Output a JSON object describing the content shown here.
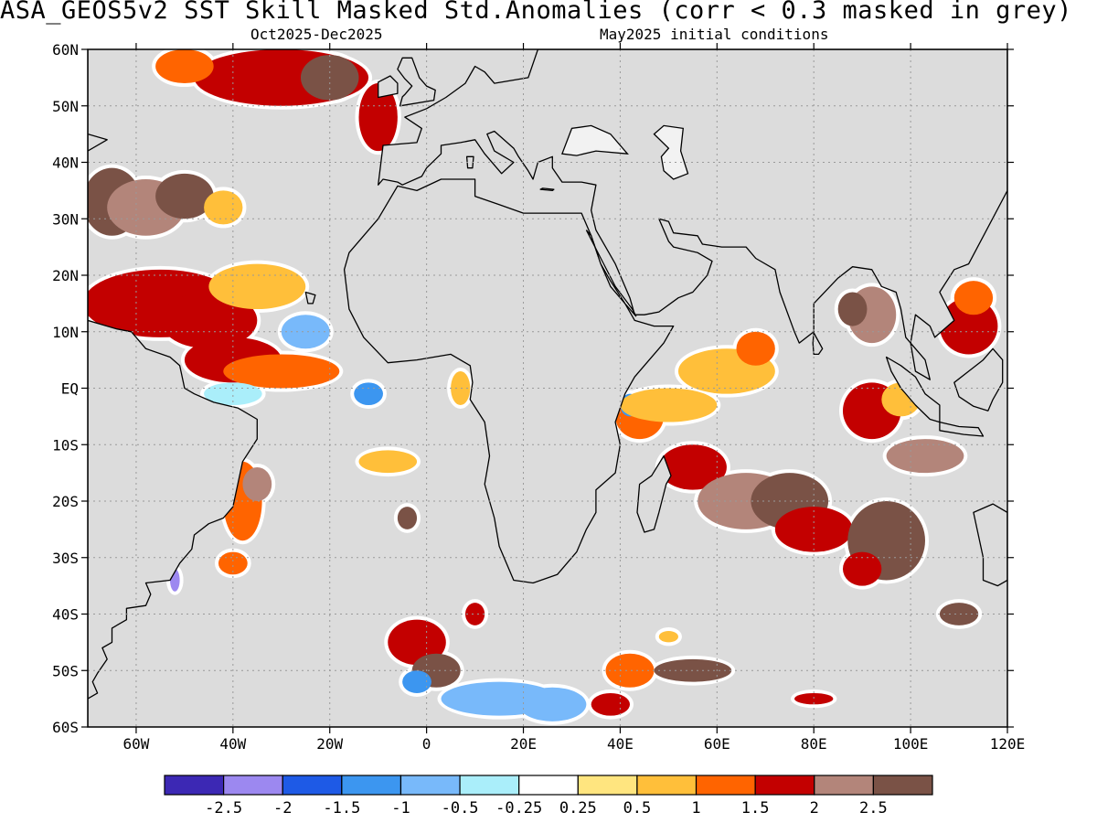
{
  "title": "ASA_GEOS5v2  SST Skill Masked Std.Anomalies (corr < 0.3 masked in grey)",
  "subtitle_left": "Oct2025-Dec2025",
  "subtitle_right": "May2025 initial conditions",
  "map": {
    "lon_range": [
      -70,
      120
    ],
    "lat_range": [
      -60,
      60
    ],
    "lat_ticks": [
      {
        "value": 60,
        "label": "60N"
      },
      {
        "value": 50,
        "label": "50N"
      },
      {
        "value": 40,
        "label": "40N"
      },
      {
        "value": 30,
        "label": "30N"
      },
      {
        "value": 20,
        "label": "20N"
      },
      {
        "value": 10,
        "label": "10N"
      },
      {
        "value": 0,
        "label": "EQ"
      },
      {
        "value": -10,
        "label": "10S"
      },
      {
        "value": -20,
        "label": "20S"
      },
      {
        "value": -30,
        "label": "30S"
      },
      {
        "value": -40,
        "label": "40S"
      },
      {
        "value": -50,
        "label": "50S"
      },
      {
        "value": -60,
        "label": "60S"
      }
    ],
    "lon_ticks": [
      {
        "value": -60,
        "label": "60W"
      },
      {
        "value": -40,
        "label": "40W"
      },
      {
        "value": -20,
        "label": "20W"
      },
      {
        "value": 0,
        "label": "0"
      },
      {
        "value": 20,
        "label": "20E"
      },
      {
        "value": 40,
        "label": "40E"
      },
      {
        "value": 60,
        "label": "60E"
      },
      {
        "value": 80,
        "label": "80E"
      },
      {
        "value": 100,
        "label": "100E"
      },
      {
        "value": 120,
        "label": "120E"
      }
    ],
    "land_color": "#dcdcdc",
    "mask_color": "#dcdcdc",
    "anomaly_regions": [
      {
        "lon": -65,
        "lat": 33,
        "rx": 6,
        "ry": 6,
        "value": 2.6
      },
      {
        "lon": -58,
        "lat": 32,
        "rx": 8,
        "ry": 5,
        "value": 2.1
      },
      {
        "lon": -50,
        "lat": 34,
        "rx": 6,
        "ry": 4,
        "value": 2.6
      },
      {
        "lon": -42,
        "lat": 32,
        "rx": 4,
        "ry": 3,
        "value": 0.8
      },
      {
        "lon": -30,
        "lat": 55,
        "rx": 18,
        "ry": 5,
        "value": 1.6
      },
      {
        "lon": -20,
        "lat": 55,
        "rx": 6,
        "ry": 4,
        "value": 2.6
      },
      {
        "lon": -50,
        "lat": 57,
        "rx": 6,
        "ry": 3,
        "value": 1.3
      },
      {
        "lon": -10,
        "lat": 48,
        "rx": 4,
        "ry": 6,
        "value": 1.6
      },
      {
        "lon": -55,
        "lat": 15,
        "rx": 16,
        "ry": 6,
        "value": 1.6
      },
      {
        "lon": -45,
        "lat": 12,
        "rx": 10,
        "ry": 5,
        "value": 1.9
      },
      {
        "lon": -35,
        "lat": 18,
        "rx": 10,
        "ry": 4,
        "value": 0.9
      },
      {
        "lon": -25,
        "lat": 10,
        "rx": 5,
        "ry": 3,
        "value": -0.9
      },
      {
        "lon": -40,
        "lat": 5,
        "rx": 10,
        "ry": 4,
        "value": 1.8
      },
      {
        "lon": -30,
        "lat": 3,
        "rx": 12,
        "ry": 3,
        "value": 1.2
      },
      {
        "lon": -40,
        "lat": -1,
        "rx": 6,
        "ry": 2,
        "value": -0.4
      },
      {
        "lon": -12,
        "lat": -1,
        "rx": 3,
        "ry": 2,
        "value": -1.2
      },
      {
        "lon": 7,
        "lat": 0,
        "rx": 2,
        "ry": 3,
        "value": 0.7
      },
      {
        "lon": -38,
        "lat": -20,
        "rx": 4,
        "ry": 7,
        "value": 1.4
      },
      {
        "lon": -35,
        "lat": -17,
        "rx": 3,
        "ry": 3,
        "value": 2.1
      },
      {
        "lon": -8,
        "lat": -13,
        "rx": 6,
        "ry": 2,
        "value": 0.6
      },
      {
        "lon": -4,
        "lat": -23,
        "rx": 2,
        "ry": 2,
        "value": 2.6
      },
      {
        "lon": -40,
        "lat": -31,
        "rx": 3,
        "ry": 2,
        "value": 1.4
      },
      {
        "lon": -52,
        "lat": -34,
        "rx": 1,
        "ry": 2,
        "value": -2.5
      },
      {
        "lon": -2,
        "lat": -45,
        "rx": 6,
        "ry": 4,
        "value": 1.8
      },
      {
        "lon": 2,
        "lat": -50,
        "rx": 5,
        "ry": 3,
        "value": 2.6
      },
      {
        "lon": -2,
        "lat": -52,
        "rx": 3,
        "ry": 2,
        "value": -1.1
      },
      {
        "lon": 15,
        "lat": -55,
        "rx": 12,
        "ry": 3,
        "value": -0.8
      },
      {
        "lon": 26,
        "lat": -56,
        "rx": 7,
        "ry": 3,
        "value": -1.0
      },
      {
        "lon": 38,
        "lat": -56,
        "rx": 4,
        "ry": 2,
        "value": 1.6
      },
      {
        "lon": 42,
        "lat": -50,
        "rx": 5,
        "ry": 3,
        "value": 1.3
      },
      {
        "lon": 55,
        "lat": -50,
        "rx": 8,
        "ry": 2,
        "value": 2.6
      },
      {
        "lon": 10,
        "lat": -40,
        "rx": 2,
        "ry": 2,
        "value": 1.7
      },
      {
        "lon": 44,
        "lat": -5,
        "rx": 5,
        "ry": 4,
        "value": 1.4
      },
      {
        "lon": 42,
        "lat": -3,
        "rx": 2,
        "ry": 2,
        "value": -1.2
      },
      {
        "lon": 50,
        "lat": -3,
        "rx": 10,
        "ry": 3,
        "value": 0.8
      },
      {
        "lon": 62,
        "lat": 3,
        "rx": 10,
        "ry": 4,
        "value": 0.6
      },
      {
        "lon": 68,
        "lat": 7,
        "rx": 4,
        "ry": 3,
        "value": 1.2
      },
      {
        "lon": 55,
        "lat": -14,
        "rx": 7,
        "ry": 4,
        "value": 1.8
      },
      {
        "lon": 66,
        "lat": -20,
        "rx": 10,
        "ry": 5,
        "value": 2.2
      },
      {
        "lon": 75,
        "lat": -20,
        "rx": 8,
        "ry": 5,
        "value": 2.6
      },
      {
        "lon": 80,
        "lat": -25,
        "rx": 8,
        "ry": 4,
        "value": 1.5
      },
      {
        "lon": 95,
        "lat": -27,
        "rx": 8,
        "ry": 7,
        "value": 2.6
      },
      {
        "lon": 90,
        "lat": -32,
        "rx": 4,
        "ry": 3,
        "value": 1.6
      },
      {
        "lon": 92,
        "lat": -4,
        "rx": 6,
        "ry": 5,
        "value": 1.7
      },
      {
        "lon": 98,
        "lat": -2,
        "rx": 4,
        "ry": 3,
        "value": 0.9
      },
      {
        "lon": 103,
        "lat": -12,
        "rx": 8,
        "ry": 3,
        "value": 2.1
      },
      {
        "lon": 92,
        "lat": 13,
        "rx": 5,
        "ry": 5,
        "value": 2.1
      },
      {
        "lon": 88,
        "lat": 14,
        "rx": 3,
        "ry": 3,
        "value": 2.6
      },
      {
        "lon": 112,
        "lat": 11,
        "rx": 6,
        "ry": 5,
        "value": 1.6
      },
      {
        "lon": 113,
        "lat": 16,
        "rx": 4,
        "ry": 3,
        "value": 1.3
      },
      {
        "lon": 110,
        "lat": -40,
        "rx": 4,
        "ry": 2,
        "value": 2.6
      },
      {
        "lon": 80,
        "lat": -55,
        "rx": 4,
        "ry": 1,
        "value": 1.7
      },
      {
        "lon": 50,
        "lat": -44,
        "rx": 2,
        "ry": 1,
        "value": 0.6
      }
    ]
  },
  "colorbar": {
    "colors": [
      "#3c28b4",
      "#9c88f0",
      "#1e5ae6",
      "#3c96f0",
      "#78b9fa",
      "#aaeefa",
      "#ffffff",
      "#ffe57f",
      "#ffbf3a",
      "#ff6400",
      "#c30000",
      "#b3857a",
      "#7a5246"
    ],
    "labels": [
      "-2.5",
      "-2",
      "-1.5",
      "-1",
      "-0.5",
      "-0.25",
      "0.25",
      "0.5",
      "1",
      "1.5",
      "2",
      "2.5"
    ],
    "bounds": [
      -2.5,
      -2,
      -1.5,
      -1,
      -0.5,
      -0.25,
      0.25,
      0.5,
      1,
      1.5,
      2,
      2.5
    ]
  }
}
